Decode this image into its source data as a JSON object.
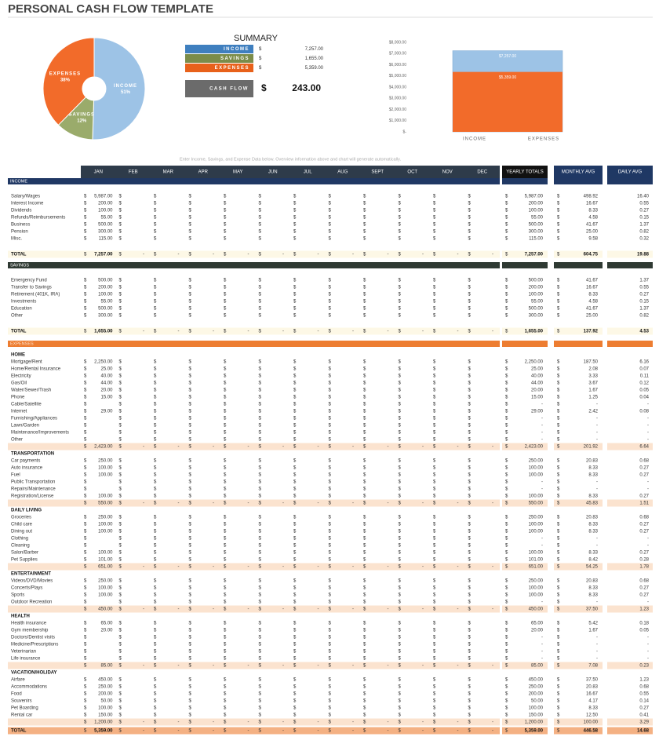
{
  "header": {
    "title": "PERSONAL CASH FLOW TEMPLATE"
  },
  "pie_chart": {
    "type": "pie",
    "categories": [
      "INCOME",
      "SAVINGS",
      "EXPENSES"
    ],
    "values": [
      51,
      12,
      38
    ],
    "value_labels": [
      "51%",
      "12%",
      "38%"
    ],
    "colors": [
      "#9dc3e6",
      "#9aab6b",
      "#f26b2a"
    ]
  },
  "summary": {
    "title": "SUMMARY",
    "currency": "$",
    "rows": [
      {
        "label": "INCOME",
        "value": "7,257.00",
        "color": "#3f7fbf"
      },
      {
        "label": "SAVINGS",
        "value": "1,655.00",
        "color": "#7b8c4a"
      },
      {
        "label": "EXPENSES",
        "value": "5,359.00",
        "color": "#e8611a"
      }
    ],
    "cash_flow": {
      "label": "CASH FLOW",
      "value": "243.00"
    }
  },
  "bar_chart": {
    "type": "bar",
    "categories": [
      "INCOME",
      "EXPENSES"
    ],
    "values": [
      7257,
      5359
    ],
    "value_labels": [
      "$7,257.00",
      "$5,359.00"
    ],
    "colors": [
      "#9dc3e6",
      "#f26b2a"
    ],
    "ylim": [
      0,
      8000
    ],
    "yticks": [
      {
        "value": 0,
        "label": "$-"
      },
      {
        "value": 1000,
        "label": "$1,000.00"
      },
      {
        "value": 2000,
        "label": "$2,000.00"
      },
      {
        "value": 3000,
        "label": "$3,000.00"
      },
      {
        "value": 4000,
        "label": "$4,000.00"
      },
      {
        "value": 5000,
        "label": "$5,000.00"
      },
      {
        "value": 6000,
        "label": "$6,000.00"
      },
      {
        "value": 7000,
        "label": "$7,000.00"
      },
      {
        "value": 8000,
        "label": "$8,000.00"
      }
    ]
  },
  "note": "Enter Income, Savings, and Expense Data below. Overview information above and chart will generate automatically.",
  "table": {
    "currency": "$",
    "nil": "-",
    "months": [
      "JAN",
      "FEB",
      "MAR",
      "APR",
      "MAY",
      "JUN",
      "JUL",
      "AUG",
      "SEPT",
      "OCT",
      "NOV",
      "DEC"
    ],
    "yearly_header": "YEARLY TOTALS",
    "monthly_header": "MONTHLY AVG",
    "daily_header": "DAILY AVG",
    "income": {
      "title": "INCOME",
      "rows": [
        [
          "Salary/Wages",
          "5,987.00",
          "5,987.00",
          "498.92",
          "16.40"
        ],
        [
          "Interest Income",
          "200.00",
          "200.00",
          "16.67",
          "0.55"
        ],
        [
          "Dividends",
          "100.00",
          "100.00",
          "8.33",
          "0.27"
        ],
        [
          "Refunds/Reimbursements",
          "55.00",
          "55.00",
          "4.58",
          "0.15"
        ],
        [
          "Business",
          "500.00",
          "500.00",
          "41.67",
          "1.37"
        ],
        [
          "Pension",
          "300.00",
          "300.00",
          "25.00",
          "0.82"
        ],
        [
          "Misc.",
          "115.00",
          "115.00",
          "9.58",
          "0.32"
        ]
      ],
      "total": [
        "TOTAL",
        "7,257.00",
        "7,257.00",
        "604.75",
        "19.88"
      ]
    },
    "savings": {
      "title": "SAVINGS",
      "rows": [
        [
          "Emergency Fund",
          "500.00",
          "500.00",
          "41.67",
          "1.37"
        ],
        [
          "Transfer to Savings",
          "200.00",
          "200.00",
          "16.67",
          "0.55"
        ],
        [
          "Retirement (401K, IRA)",
          "100.00",
          "100.00",
          "8.33",
          "0.27"
        ],
        [
          "Investments",
          "55.00",
          "55.00",
          "4.58",
          "0.15"
        ],
        [
          "Education",
          "500.00",
          "500.00",
          "41.67",
          "1.37"
        ],
        [
          "Other",
          "300.00",
          "300.00",
          "25.00",
          "0.82"
        ]
      ],
      "total": [
        "TOTAL",
        "1,655.00",
        "1,655.00",
        "137.92",
        "4.53"
      ]
    },
    "expenses": {
      "title": "EXPENSES",
      "groups": [
        {
          "title": "HOME",
          "rows": [
            [
              "Mortgage/Rent",
              "2,250.00",
              "2,250.00",
              "187.50",
              "6.16"
            ],
            [
              "Home/Rental Insurance",
              "25.00",
              "25.00",
              "2.08",
              "0.07"
            ],
            [
              "Electricity",
              "40.00",
              "40.00",
              "3.33",
              "0.11"
            ],
            [
              "Gas/Oil",
              "44.00",
              "44.00",
              "3.67",
              "0.12"
            ],
            [
              "Water/Sewer/Trash",
              "20.00",
              "20.00",
              "1.67",
              "0.05"
            ],
            [
              "Phone",
              "15.00",
              "15.00",
              "1.25",
              "0.04"
            ],
            [
              "Cable/Satellite",
              null,
              null,
              null,
              null
            ],
            [
              "Internet",
              "29.00",
              "29.00",
              "2.42",
              "0.08"
            ],
            [
              "Furnishing/Appliances",
              null,
              null,
              null,
              null
            ],
            [
              "Lawn/Garden",
              null,
              null,
              null,
              null
            ],
            [
              "Maintenance/Improvements",
              null,
              null,
              null,
              null
            ],
            [
              "Other",
              null,
              null,
              null,
              null
            ]
          ],
          "total": [
            null,
            "2,423.00",
            "2,423.00",
            "201.92",
            "6.64"
          ]
        },
        {
          "title": "TRANSPORTATION",
          "rows": [
            [
              "Car payments",
              "250.00",
              "250.00",
              "20.83",
              "0.68"
            ],
            [
              "Auto insurance",
              "100.00",
              "100.00",
              "8.33",
              "0.27"
            ],
            [
              "Fuel",
              "100.00",
              "100.00",
              "8.33",
              "0.27"
            ],
            [
              "Public Transportation",
              null,
              null,
              null,
              null
            ],
            [
              "Repairs/Maintenance",
              null,
              null,
              null,
              null
            ],
            [
              "Registration/License",
              "100.00",
              "100.00",
              "8.33",
              "0.27"
            ]
          ],
          "total": [
            null,
            "550.00",
            "550.00",
            "45.83",
            "1.51"
          ]
        },
        {
          "title": "DAILY LIVING",
          "rows": [
            [
              "Groceries",
              "250.00",
              "250.00",
              "20.83",
              "0.68"
            ],
            [
              "Child care",
              "100.00",
              "100.00",
              "8.33",
              "0.27"
            ],
            [
              "Dining out",
              "100.00",
              "100.00",
              "8.33",
              "0.27"
            ],
            [
              "Clothing",
              null,
              null,
              null,
              null
            ],
            [
              "Cleaning",
              null,
              null,
              null,
              null
            ],
            [
              "Salon/Barber",
              "100.00",
              "100.00",
              "8.33",
              "0.27"
            ],
            [
              "Pet Supplies",
              "101.00",
              "101.00",
              "8.42",
              "0.28"
            ]
          ],
          "total": [
            null,
            "651.00",
            "651.00",
            "54.25",
            "1.78"
          ]
        },
        {
          "title": "ENTERTAINMENT",
          "rows": [
            [
              "Videos/DVD/Movies",
              "250.00",
              "250.00",
              "20.83",
              "0.68"
            ],
            [
              "Concerts/Plays",
              "100.00",
              "100.00",
              "8.33",
              "0.27"
            ],
            [
              "Sports",
              "100.00",
              "100.00",
              "8.33",
              "0.27"
            ],
            [
              "Outdoor Recreation",
              null,
              null,
              null,
              null
            ]
          ],
          "total": [
            null,
            "450.00",
            "450.00",
            "37.50",
            "1.23"
          ]
        },
        {
          "title": "HEALTH",
          "rows": [
            [
              "Health insurance",
              "65.00",
              "65.00",
              "5.42",
              "0.18"
            ],
            [
              "Gym membership",
              "20.00",
              "20.00",
              "1.67",
              "0.05"
            ],
            [
              "Doctors/Dentist visits",
              null,
              null,
              null,
              null
            ],
            [
              "Medicine/Prescriptions",
              null,
              null,
              null,
              null
            ],
            [
              "Veterinarian",
              null,
              null,
              null,
              null
            ],
            [
              "Life insurance",
              null,
              null,
              null,
              null
            ]
          ],
          "total": [
            null,
            "85.00",
            "85.00",
            "7.08",
            "0.23"
          ]
        },
        {
          "title": "VACATION/HOLIDAY",
          "rows": [
            [
              "Airfare",
              "450.00",
              "450.00",
              "37.50",
              "1.23"
            ],
            [
              "Accommodations",
              "250.00",
              "250.00",
              "20.83",
              "0.68"
            ],
            [
              "Food",
              "200.00",
              "200.00",
              "16.67",
              "0.55"
            ],
            [
              "Souvenirs",
              "50.00",
              "50.00",
              "4.17",
              "0.14"
            ],
            [
              "Pet Boarding",
              "100.00",
              "100.00",
              "8.33",
              "0.27"
            ],
            [
              "Rental car",
              "150.00",
              "150.00",
              "12.50",
              "0.41"
            ]
          ],
          "total": [
            null,
            "1,200.00",
            "1,200.00",
            "100.00",
            "3.29"
          ]
        }
      ],
      "total": [
        "TOTAL",
        "5,359.00",
        "5,359.00",
        "446.58",
        "14.68"
      ]
    }
  }
}
